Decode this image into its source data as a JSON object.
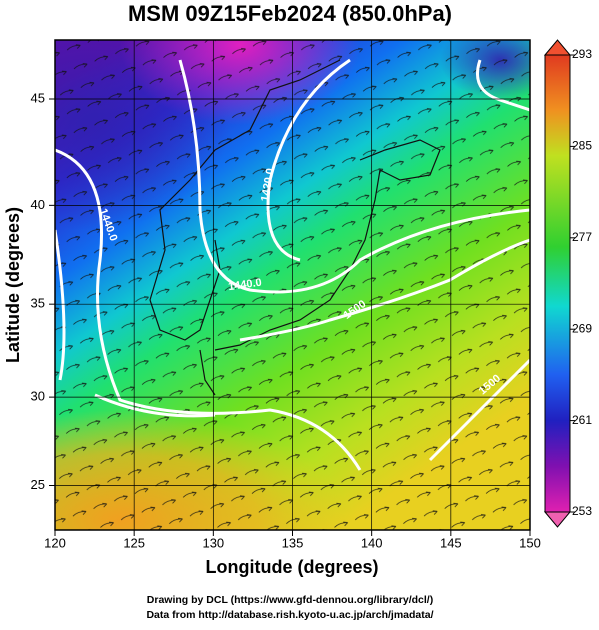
{
  "map": {
    "title": "MSM 09Z15Feb2024 (850.0hPa)",
    "x_label": "Longitude (degrees)",
    "y_label": "Latitude  (degrees)",
    "xlim": [
      120,
      150
    ],
    "xticks": [
      120,
      125,
      130,
      135,
      140,
      145,
      150
    ],
    "ylim": [
      22.4,
      47.6
    ],
    "yticks": [
      25,
      30,
      35,
      40,
      45
    ],
    "colorbar_lim": [
      253,
      293
    ],
    "colorbar_ticks": [
      253,
      261,
      269,
      277,
      285,
      293
    ],
    "contour_labels": [
      "1440.0",
      "1420.0",
      "1440.0",
      "1500",
      "1500"
    ],
    "footer": [
      "Drawing by DCL (https://www.gfd-dennou.org/library/dcl/)",
      "Data from http://database.rish.kyoto-u.ac.jp/arch/jmadata/"
    ]
  }
}
